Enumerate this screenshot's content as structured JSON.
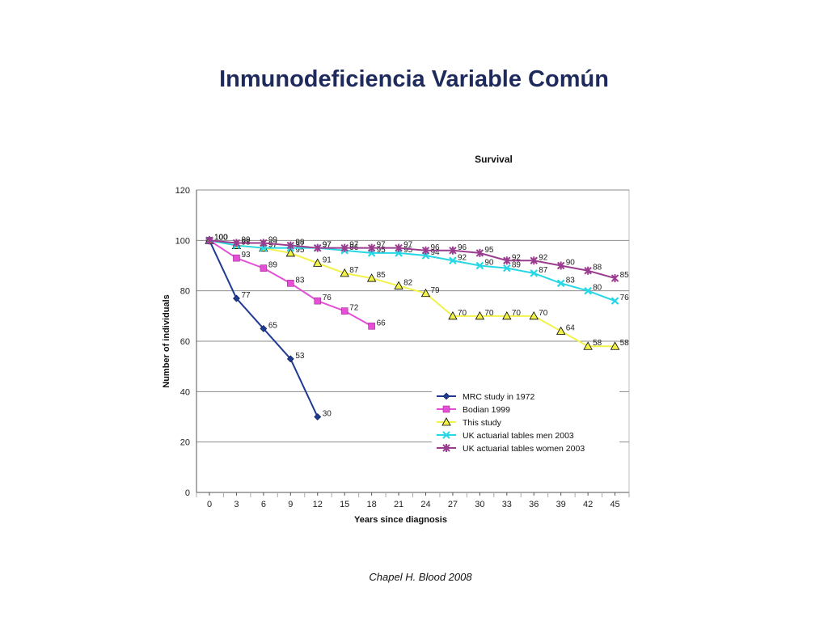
{
  "slide": {
    "title": "Inmunodeficiencia Variable Común",
    "caption": "Chapel H. Blood 2008"
  },
  "chart_data": {
    "type": "line",
    "title": "Survival",
    "xlabel": "Years since diagnosis",
    "ylabel": "Number of individuals",
    "categories": [
      "0",
      "3",
      "6",
      "9",
      "12",
      "15",
      "18",
      "21",
      "24",
      "27",
      "30",
      "33",
      "36",
      "39",
      "42",
      "45"
    ],
    "ylim": [
      0,
      120
    ],
    "yticks": [
      0,
      20,
      40,
      60,
      80,
      100,
      120
    ],
    "grid": true,
    "legend_position": "bottom-right",
    "series": [
      {
        "name": "MRC study in 1972",
        "color": "#1f3a93",
        "marker": "diamond",
        "values": [
          100,
          77,
          65,
          53,
          30,
          null,
          null,
          null,
          null,
          null,
          null,
          null,
          null,
          null,
          null,
          null
        ]
      },
      {
        "name": "Bodian 1999",
        "color": "#e44fd6",
        "marker": "square",
        "values": [
          100,
          93,
          89,
          83,
          76,
          72,
          66,
          null,
          null,
          null,
          null,
          null,
          null,
          null,
          null,
          null
        ]
      },
      {
        "name": "This study",
        "color": "#f2f24a",
        "marker": "triangle",
        "values": [
          100,
          98,
          97,
          95,
          91,
          87,
          85,
          82,
          79,
          70,
          70,
          70,
          70,
          64,
          58,
          58
        ]
      },
      {
        "name": "UK actuarial tables men 2003",
        "color": "#26d7e6",
        "marker": "x",
        "values": [
          100,
          98,
          97,
          97,
          97,
          96,
          95,
          95,
          94,
          92,
          90,
          89,
          87,
          83,
          80,
          76
        ]
      },
      {
        "name": "UK actuarial tables women 2003",
        "color": "#9b3d8f",
        "marker": "star",
        "values": [
          100,
          99,
          99,
          98,
          97,
          97,
          97,
          97,
          96,
          96,
          95,
          92,
          92,
          90,
          88,
          85
        ]
      }
    ]
  }
}
